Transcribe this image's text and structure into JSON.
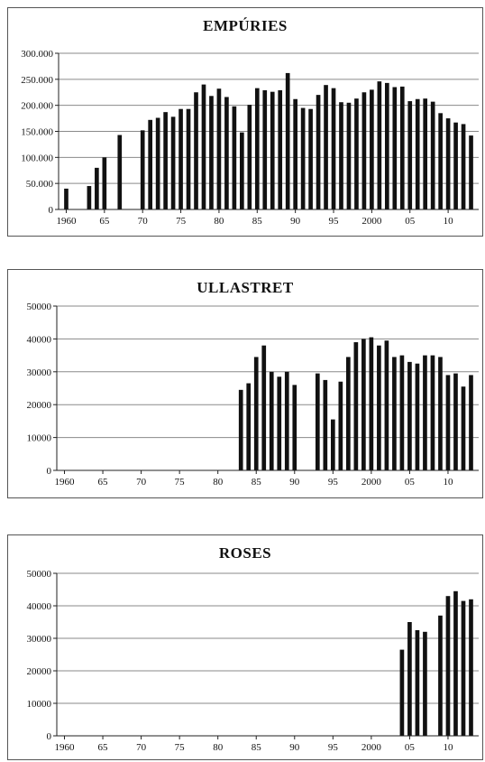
{
  "charts": [
    {
      "title": "EMPÚRIES",
      "chart_data": {
        "type": "bar",
        "title": "EMPÚRIES",
        "xlim": [
          1959,
          2014
        ],
        "ylim": [
          0,
          300000
        ],
        "yticks": [
          0,
          50000,
          100000,
          150000,
          200000,
          250000,
          300000
        ],
        "ytick_labels": [
          "0",
          "50.000",
          "100.000",
          "150.000",
          "200.000",
          "250.000",
          "300.000"
        ],
        "xticks": [
          1960,
          1965,
          1970,
          1975,
          1980,
          1985,
          1990,
          1995,
          2000,
          2005,
          2010
        ],
        "xtick_labels": [
          "1960",
          "65",
          "70",
          "75",
          "80",
          "85",
          "90",
          "95",
          "2000",
          "05",
          "10"
        ],
        "grid": true,
        "x": [
          1960,
          1963,
          1964,
          1965,
          1967,
          1970,
          1971,
          1972,
          1973,
          1974,
          1975,
          1976,
          1977,
          1978,
          1979,
          1980,
          1981,
          1982,
          1983,
          1984,
          1985,
          1986,
          1987,
          1988,
          1989,
          1990,
          1991,
          1992,
          1993,
          1994,
          1995,
          1996,
          1997,
          1998,
          1999,
          2000,
          2001,
          2002,
          2003,
          2004,
          2005,
          2006,
          2007,
          2008,
          2009,
          2010,
          2011,
          2012,
          2013
        ],
        "values": [
          40000,
          45000,
          80000,
          100000,
          143000,
          152000,
          172000,
          176000,
          187000,
          178000,
          193000,
          193000,
          225000,
          240000,
          218000,
          232000,
          216000,
          198000,
          148000,
          201000,
          233000,
          229000,
          226000,
          229000,
          262000,
          212000,
          195000,
          193000,
          220000,
          239000,
          233000,
          206000,
          205000,
          213000,
          225000,
          230000,
          246000,
          243000,
          235000,
          236000,
          208000,
          212000,
          213000,
          207000,
          185000,
          175000,
          167000,
          164000,
          142000
        ]
      }
    },
    {
      "title": "ULLASTRET",
      "chart_data": {
        "type": "bar",
        "title": "ULLASTRET",
        "xlim": [
          1959,
          2014
        ],
        "ylim": [
          0,
          50000
        ],
        "yticks": [
          0,
          10000,
          20000,
          30000,
          40000,
          50000
        ],
        "ytick_labels": [
          "0",
          "10000",
          "20000",
          "30000",
          "40000",
          "50000"
        ],
        "xticks": [
          1960,
          1965,
          1970,
          1975,
          1980,
          1985,
          1990,
          1995,
          2000,
          2005,
          2010
        ],
        "xtick_labels": [
          "1960",
          "65",
          "70",
          "75",
          "80",
          "85",
          "90",
          "95",
          "2000",
          "05",
          "10"
        ],
        "grid": true,
        "x": [
          1983,
          1984,
          1985,
          1986,
          1987,
          1988,
          1989,
          1990,
          1993,
          1994,
          1995,
          1996,
          1997,
          1998,
          1999,
          2000,
          2001,
          2002,
          2003,
          2004,
          2005,
          2006,
          2007,
          2008,
          2009,
          2010,
          2011,
          2012,
          2013
        ],
        "values": [
          24500,
          26500,
          34500,
          38000,
          30000,
          28500,
          30000,
          26000,
          29500,
          27500,
          15500,
          27000,
          34500,
          39000,
          40000,
          40500,
          38000,
          39500,
          34500,
          35000,
          33000,
          32500,
          35000,
          35000,
          34500,
          29000,
          29500,
          25500,
          29000
        ]
      }
    },
    {
      "title": "ROSES",
      "chart_data": {
        "type": "bar",
        "title": "ROSES",
        "xlim": [
          1959,
          2014
        ],
        "ylim": [
          0,
          50000
        ],
        "yticks": [
          0,
          10000,
          20000,
          30000,
          40000,
          50000
        ],
        "ytick_labels": [
          "0",
          "10000",
          "20000",
          "30000",
          "40000",
          "50000"
        ],
        "xticks": [
          1960,
          1965,
          1970,
          1975,
          1980,
          1985,
          1990,
          1995,
          2000,
          2005,
          2010
        ],
        "xtick_labels": [
          "1960",
          "65",
          "70",
          "75",
          "80",
          "85",
          "90",
          "95",
          "2000",
          "05",
          "10"
        ],
        "grid": true,
        "x": [
          2004,
          2005,
          2006,
          2007,
          2009,
          2010,
          2011,
          2012,
          2013
        ],
        "values": [
          26500,
          35000,
          32500,
          32000,
          37000,
          43000,
          44500,
          41500,
          42000
        ]
      }
    }
  ]
}
